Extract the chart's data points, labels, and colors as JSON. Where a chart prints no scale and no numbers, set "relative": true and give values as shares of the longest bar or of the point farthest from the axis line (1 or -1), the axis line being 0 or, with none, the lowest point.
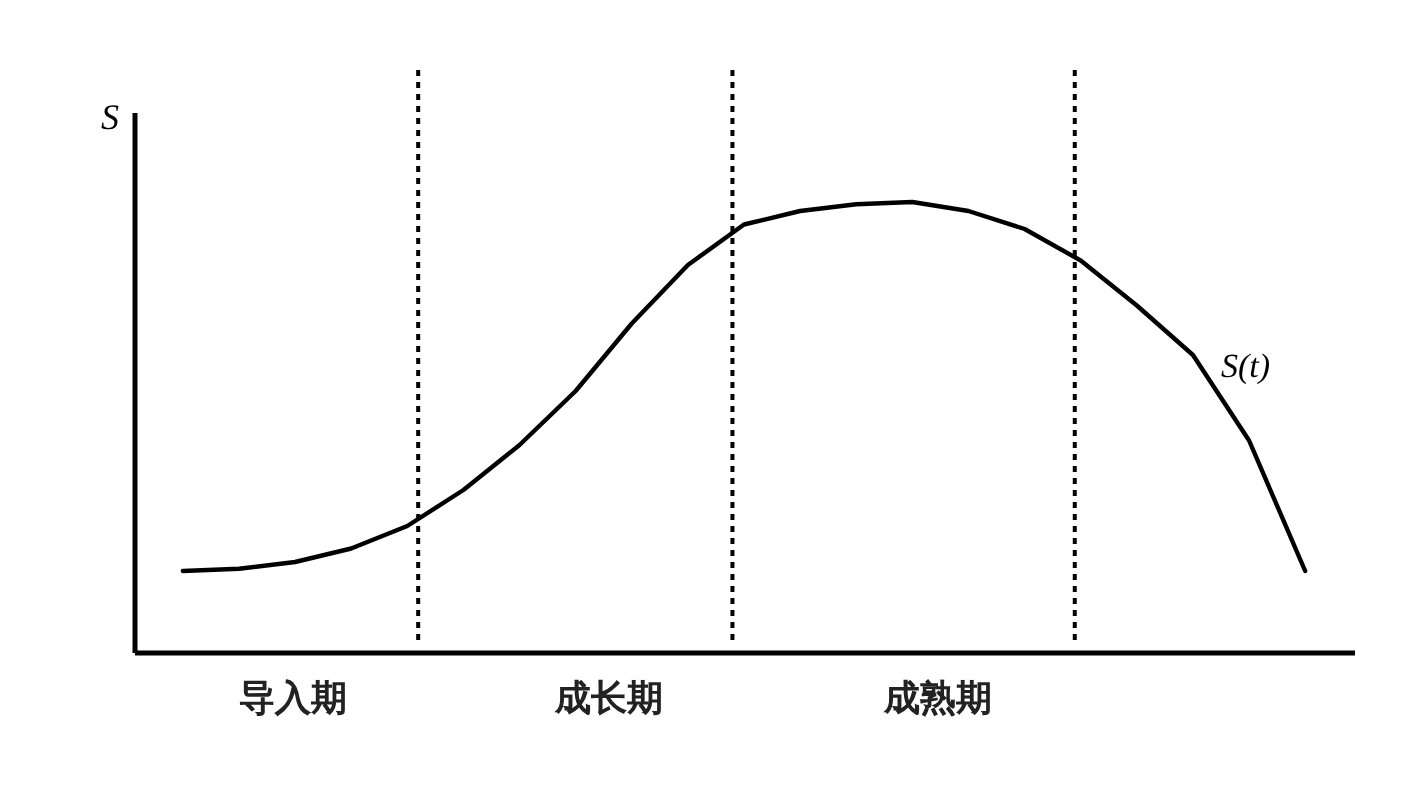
{
  "chart_data": {
    "type": "line",
    "relative": true,
    "ylabel": "S",
    "categories": [
      null,
      null,
      null,
      null,
      null,
      null,
      null,
      null,
      null,
      null,
      null,
      null,
      null,
      null,
      null,
      null,
      null,
      null,
      null,
      null,
      null
    ],
    "series": [
      {
        "name": "S(t)",
        "color": "#000000",
        "values": [
          0.18,
          0.185,
          0.2,
          0.23,
          0.28,
          0.36,
          0.46,
          0.58,
          0.73,
          0.86,
          0.95,
          0.98,
          0.995,
          1.0,
          0.98,
          0.94,
          0.87,
          0.77,
          0.66,
          0.47,
          0.18
        ]
      }
    ],
    "annotations": [
      "导入期",
      "成长期",
      "成熟期"
    ]
  }
}
